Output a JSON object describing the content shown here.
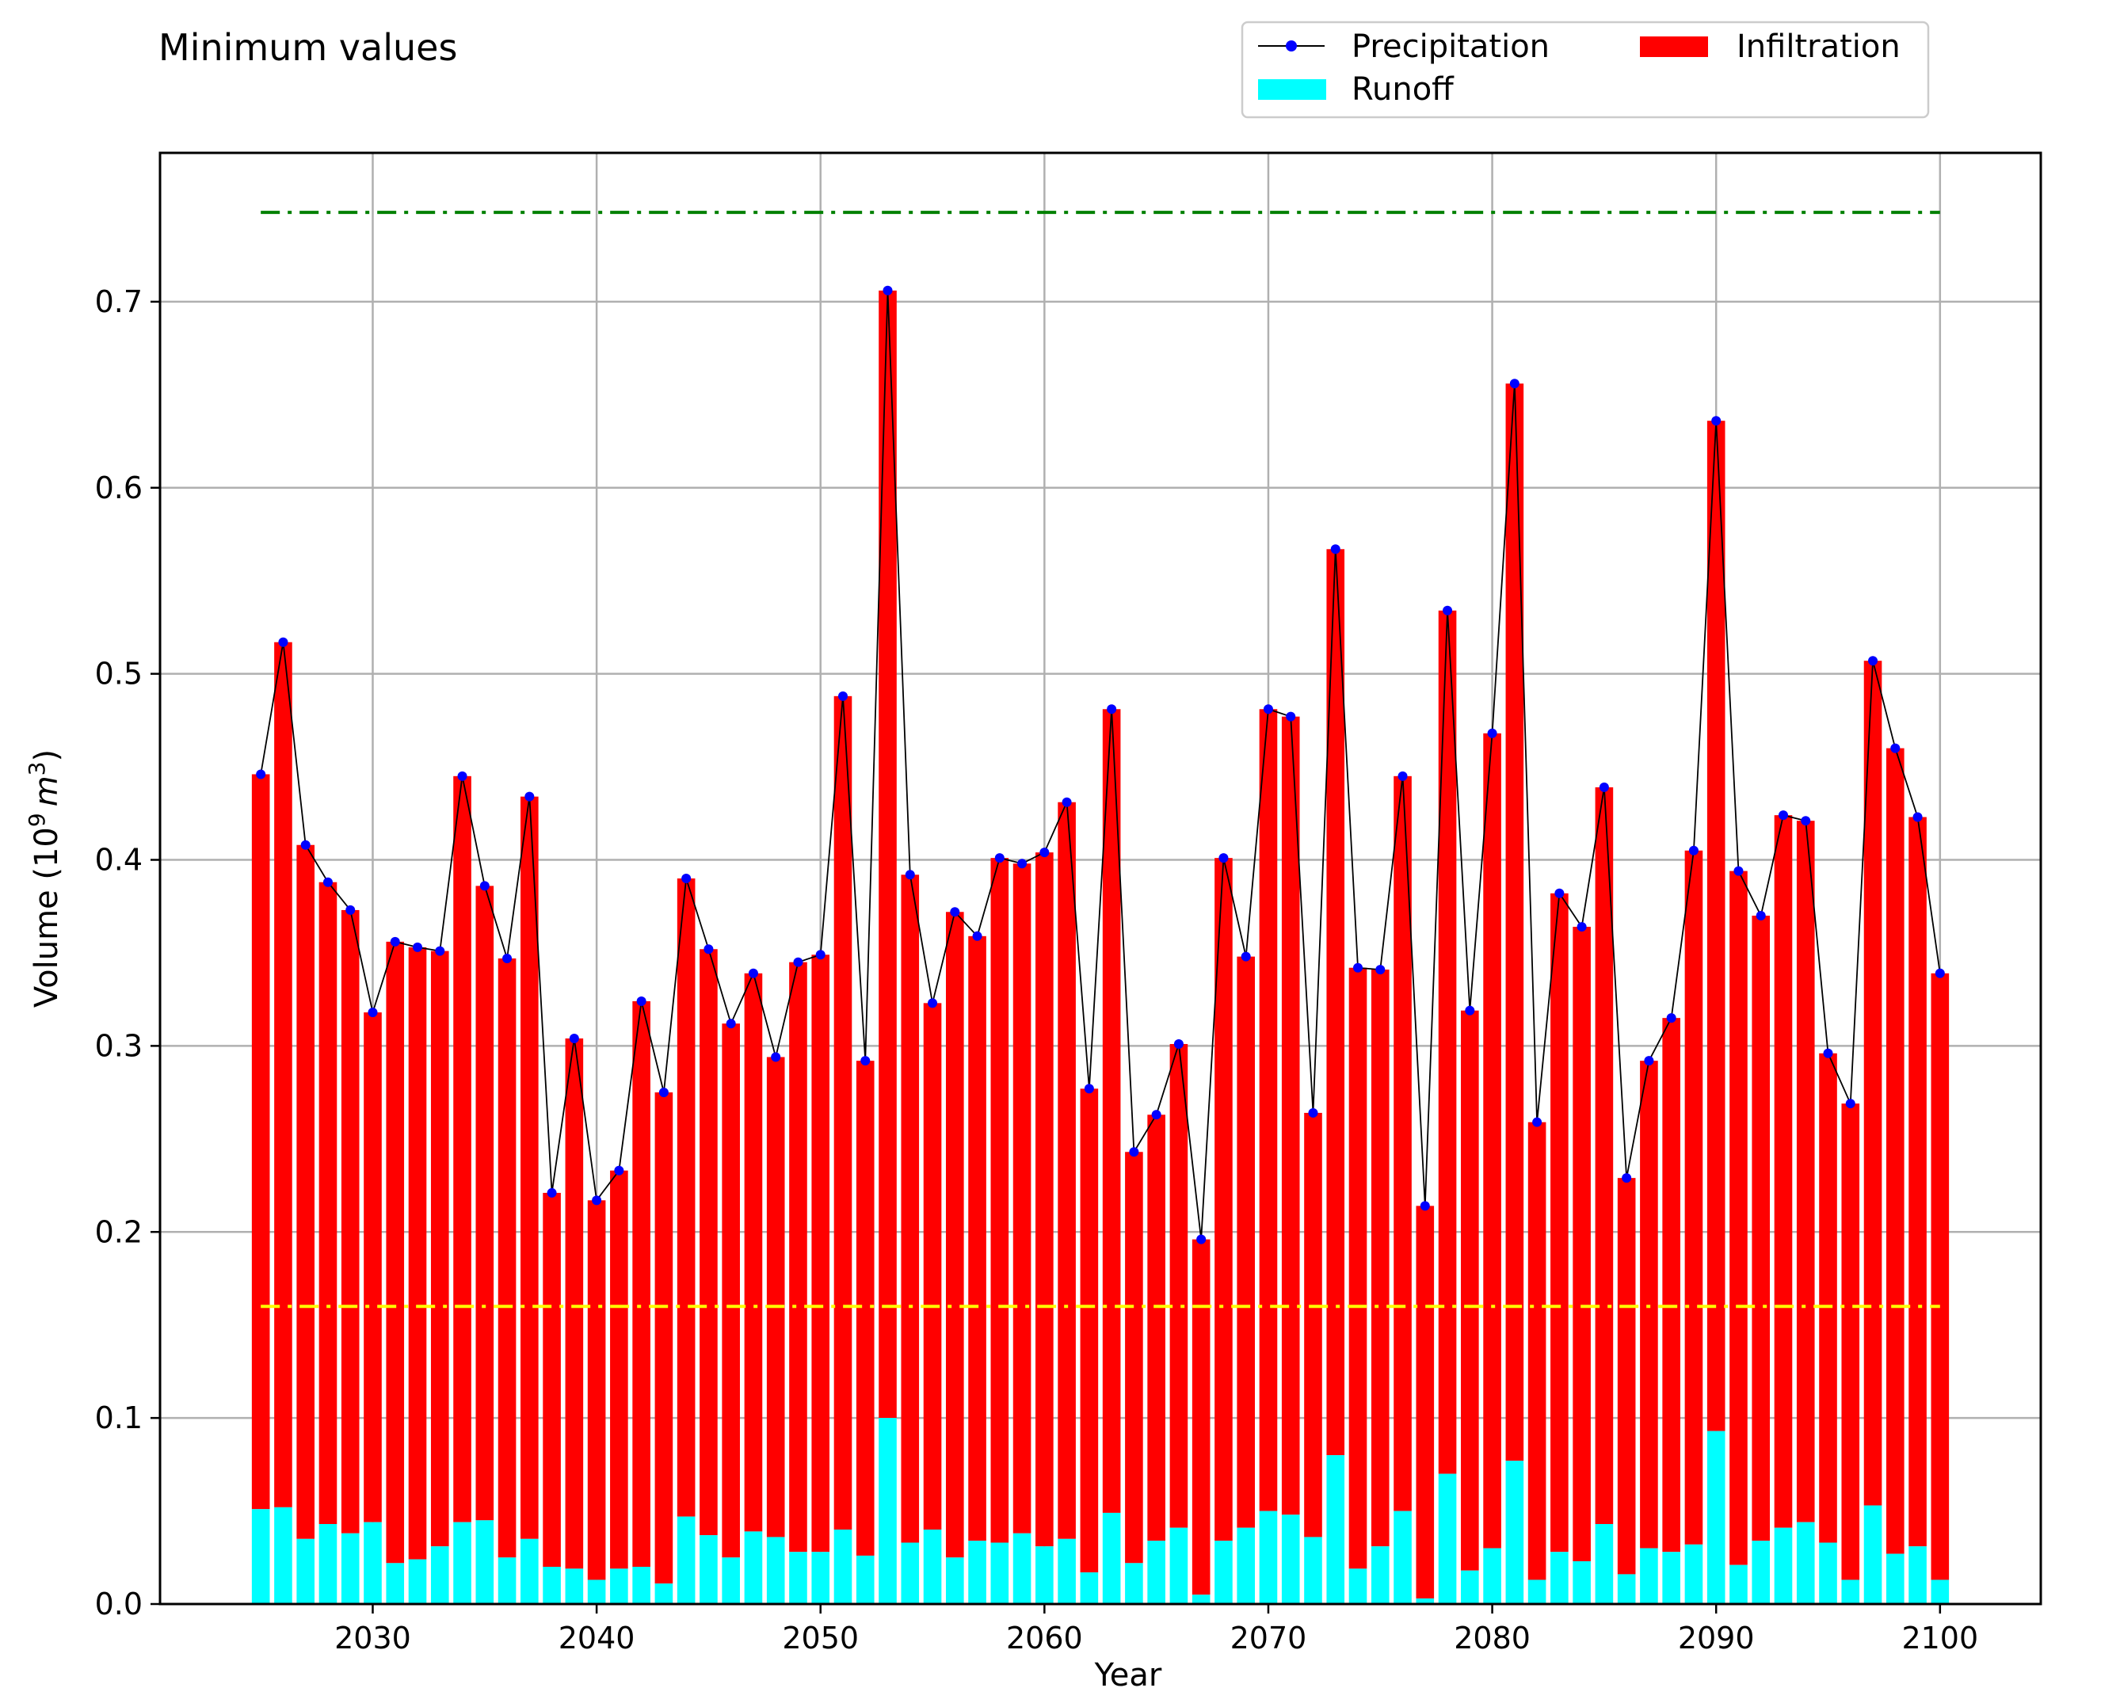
{
  "chart_data": {
    "type": "bar",
    "title": "Minimum values",
    "xlabel": "Year",
    "ylabel": "Volume (10",
    "ylabel_sup": "9",
    "ylabel_unit": "m",
    "ylabel_unit_sup": "3",
    "ylabel_close": ")",
    "xlim": [
      2020.5,
      2104.5
    ],
    "ylim": [
      0,
      0.78
    ],
    "xticks": [
      2030,
      2040,
      2050,
      2060,
      2070,
      2080,
      2090,
      2100
    ],
    "yticks": [
      0.0,
      0.1,
      0.2,
      0.3,
      0.4,
      0.5,
      0.6,
      0.7
    ],
    "ytick_labels": [
      "0.0",
      "0.1",
      "0.2",
      "0.3",
      "0.4",
      "0.5",
      "0.6",
      "0.7"
    ],
    "grid": true,
    "legend_position": "top-right",
    "legend": {
      "precipitation": "Precipitation",
      "infiltration": "Infiltration",
      "runoff": "Runoff"
    },
    "colors": {
      "infiltration": "#ff0000",
      "runoff": "#00ffff",
      "precipitation_marker": "#0000ff",
      "precipitation_line": "#000000",
      "upper_reference": "#008000",
      "lower_reference": "#ffff00",
      "grid": "#b0b0b0"
    },
    "years": [
      2025,
      2026,
      2027,
      2028,
      2029,
      2030,
      2031,
      2032,
      2033,
      2034,
      2035,
      2036,
      2037,
      2038,
      2039,
      2040,
      2041,
      2042,
      2043,
      2044,
      2045,
      2046,
      2047,
      2048,
      2049,
      2050,
      2051,
      2052,
      2053,
      2054,
      2055,
      2056,
      2057,
      2058,
      2059,
      2060,
      2061,
      2062,
      2063,
      2064,
      2065,
      2066,
      2067,
      2068,
      2069,
      2070,
      2071,
      2072,
      2073,
      2074,
      2075,
      2076,
      2077,
      2078,
      2079,
      2080,
      2081,
      2082,
      2083,
      2084,
      2085,
      2086,
      2087,
      2088,
      2089,
      2090,
      2091,
      2092,
      2093,
      2094,
      2095,
      2096,
      2097,
      2098,
      2099,
      2100
    ],
    "series": [
      {
        "name": "Precipitation",
        "values": [
          0.446,
          0.517,
          0.408,
          0.388,
          0.373,
          0.318,
          0.356,
          0.353,
          0.351,
          0.445,
          0.386,
          0.347,
          0.434,
          0.221,
          0.304,
          0.217,
          0.233,
          0.324,
          0.275,
          0.39,
          0.352,
          0.312,
          0.339,
          0.294,
          0.345,
          0.349,
          0.488,
          0.292,
          0.706,
          0.392,
          0.323,
          0.372,
          0.359,
          0.401,
          0.398,
          0.404,
          0.431,
          0.277,
          0.481,
          0.243,
          0.263,
          0.301,
          0.196,
          0.401,
          0.348,
          0.481,
          0.477,
          0.264,
          0.567,
          0.342,
          0.341,
          0.445,
          0.214,
          0.534,
          0.319,
          0.468,
          0.656,
          0.259,
          0.382,
          0.364,
          0.439,
          0.229,
          0.292,
          0.315,
          0.405,
          0.636,
          0.394,
          0.37,
          0.424,
          0.421,
          0.296,
          0.269,
          0.507,
          0.46,
          0.423,
          0.339
        ]
      },
      {
        "name": "Runoff",
        "values": [
          0.051,
          0.052,
          0.035,
          0.043,
          0.038,
          0.044,
          0.022,
          0.024,
          0.031,
          0.044,
          0.045,
          0.025,
          0.035,
          0.02,
          0.019,
          0.013,
          0.019,
          0.02,
          0.011,
          0.047,
          0.037,
          0.025,
          0.039,
          0.036,
          0.028,
          0.028,
          0.04,
          0.026,
          0.1,
          0.033,
          0.04,
          0.025,
          0.034,
          0.033,
          0.038,
          0.031,
          0.035,
          0.017,
          0.049,
          0.022,
          0.034,
          0.041,
          0.005,
          0.034,
          0.041,
          0.05,
          0.048,
          0.036,
          0.08,
          0.019,
          0.031,
          0.05,
          0.003,
          0.07,
          0.018,
          0.03,
          0.077,
          0.013,
          0.028,
          0.023,
          0.043,
          0.016,
          0.03,
          0.028,
          0.032,
          0.093,
          0.021,
          0.034,
          0.041,
          0.044,
          0.033,
          0.013,
          0.053,
          0.027,
          0.031,
          0.013
        ]
      }
    ],
    "reference_lines": [
      {
        "value": 0.748,
        "style": "dash-dot",
        "color": "#008000"
      },
      {
        "value": 0.16,
        "style": "dash-dot",
        "color": "#ffff00"
      }
    ]
  }
}
